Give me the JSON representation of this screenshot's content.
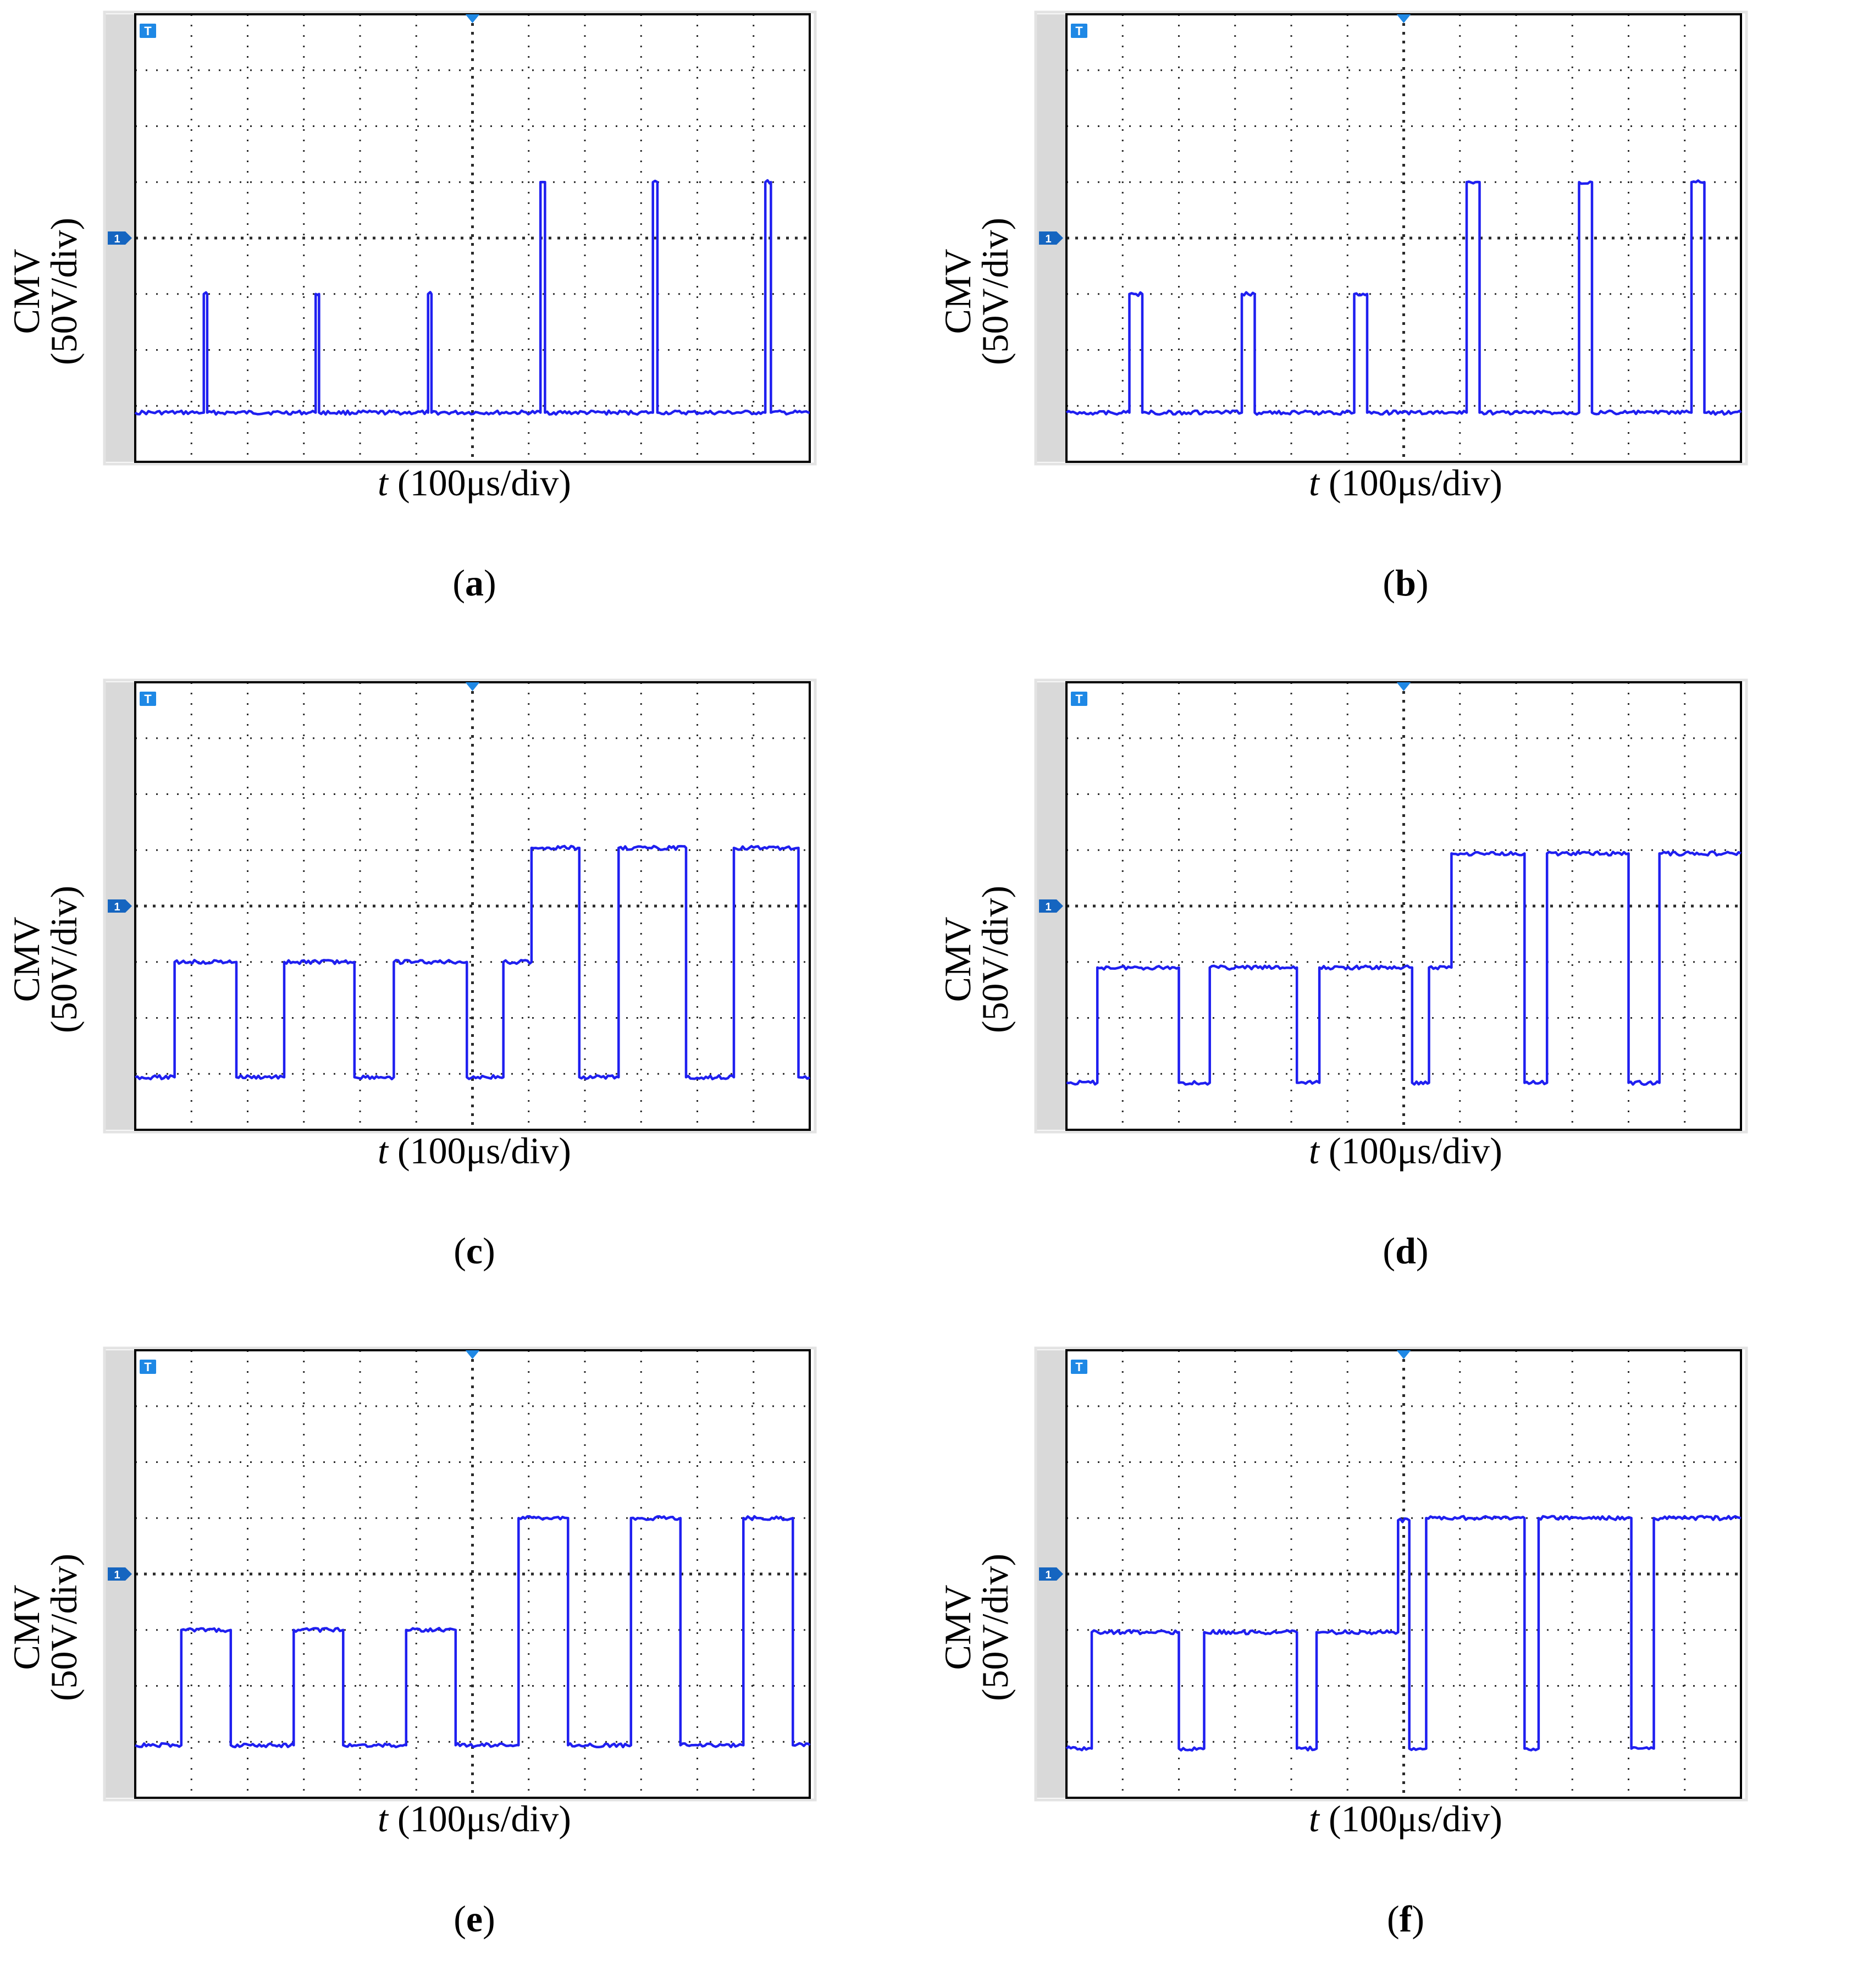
{
  "colors": {
    "trace": "#1f1ff0",
    "grid": "#2a2a2a",
    "bezel": "#d9d9d9",
    "marker": "#1e88e5"
  },
  "axes": {
    "ylabel_top": "CMV",
    "ylabel_bottom": "(50V/div)",
    "xlabel_var": "t",
    "xlabel_unit": " (100μs/div)"
  },
  "markers": {
    "trigger": "T",
    "channel": "1"
  },
  "chart_data": [
    {
      "type": "line",
      "caption_letter": "a",
      "xlabel": "t (100μs/div)",
      "ylabel": "CMV (50V/div)",
      "x_unit": "μs",
      "y_unit": "V",
      "xlim": [
        0,
        1200
      ],
      "ylim": [
        -200,
        200
      ],
      "grid": true,
      "points": [
        [
          0,
          -156
        ],
        [
          122,
          -156
        ],
        [
          122,
          -50
        ],
        [
          128,
          -50
        ],
        [
          128,
          -156
        ],
        [
          321,
          -156
        ],
        [
          321,
          -50
        ],
        [
          327,
          -50
        ],
        [
          327,
          -156
        ],
        [
          521,
          -156
        ],
        [
          521,
          -50
        ],
        [
          527,
          -50
        ],
        [
          527,
          -156
        ],
        [
          721,
          -156
        ],
        [
          721,
          50
        ],
        [
          729,
          50
        ],
        [
          729,
          -156
        ],
        [
          921,
          -156
        ],
        [
          921,
          50
        ],
        [
          929,
          50
        ],
        [
          929,
          -156
        ],
        [
          1121,
          -156
        ],
        [
          1121,
          50
        ],
        [
          1131,
          50
        ],
        [
          1131,
          -156
        ],
        [
          1200,
          -156
        ]
      ]
    },
    {
      "type": "line",
      "caption_letter": "b",
      "xlabel": "t (100μs/div)",
      "ylabel": "CMV (50V/div)",
      "x_unit": "μs",
      "y_unit": "V",
      "xlim": [
        0,
        1200
      ],
      "ylim": [
        -200,
        200
      ],
      "grid": true,
      "points": [
        [
          0,
          -156
        ],
        [
          112,
          -156
        ],
        [
          112,
          -50
        ],
        [
          135,
          -50
        ],
        [
          135,
          -156
        ],
        [
          312,
          -156
        ],
        [
          312,
          -50
        ],
        [
          335,
          -50
        ],
        [
          335,
          -156
        ],
        [
          512,
          -156
        ],
        [
          512,
          -50
        ],
        [
          535,
          -50
        ],
        [
          535,
          -156
        ],
        [
          712,
          -156
        ],
        [
          712,
          50
        ],
        [
          735,
          50
        ],
        [
          735,
          -156
        ],
        [
          912,
          -156
        ],
        [
          912,
          50
        ],
        [
          935,
          50
        ],
        [
          935,
          -156
        ],
        [
          1112,
          -156
        ],
        [
          1112,
          50
        ],
        [
          1135,
          50
        ],
        [
          1135,
          -156
        ],
        [
          1200,
          -156
        ]
      ]
    },
    {
      "type": "line",
      "caption_letter": "c",
      "xlabel": "t (100μs/div)",
      "ylabel": "CMV (50V/div)",
      "x_unit": "μs",
      "y_unit": "V",
      "xlim": [
        0,
        1200
      ],
      "ylim": [
        -200,
        200
      ],
      "grid": true,
      "points": [
        [
          0,
          -153
        ],
        [
          70,
          -153
        ],
        [
          70,
          -50
        ],
        [
          180,
          -50
        ],
        [
          180,
          -153
        ],
        [
          265,
          -153
        ],
        [
          265,
          -50
        ],
        [
          390,
          -50
        ],
        [
          390,
          -153
        ],
        [
          460,
          -153
        ],
        [
          460,
          -50
        ],
        [
          590,
          -50
        ],
        [
          590,
          -153
        ],
        [
          655,
          -153
        ],
        [
          655,
          -50
        ],
        [
          705,
          -50
        ],
        [
          705,
          52
        ],
        [
          790,
          52
        ],
        [
          790,
          -153
        ],
        [
          860,
          -153
        ],
        [
          860,
          52
        ],
        [
          980,
          52
        ],
        [
          980,
          -153
        ],
        [
          1065,
          -153
        ],
        [
          1065,
          52
        ],
        [
          1180,
          52
        ],
        [
          1180,
          -153
        ],
        [
          1200,
          -153
        ]
      ]
    },
    {
      "type": "line",
      "caption_letter": "d",
      "xlabel": "t (100μs/div)",
      "ylabel": "CMV (50V/div)",
      "x_unit": "μs",
      "y_unit": "V",
      "xlim": [
        0,
        1200
      ],
      "ylim": [
        -200,
        200
      ],
      "grid": true,
      "points": [
        [
          0,
          -158
        ],
        [
          55,
          -158
        ],
        [
          55,
          -55
        ],
        [
          200,
          -55
        ],
        [
          200,
          -158
        ],
        [
          255,
          -158
        ],
        [
          255,
          -55
        ],
        [
          410,
          -55
        ],
        [
          410,
          -158
        ],
        [
          450,
          -158
        ],
        [
          450,
          -55
        ],
        [
          615,
          -55
        ],
        [
          615,
          -158
        ],
        [
          645,
          -158
        ],
        [
          645,
          -55
        ],
        [
          685,
          -55
        ],
        [
          685,
          47
        ],
        [
          815,
          47
        ],
        [
          815,
          -158
        ],
        [
          855,
          -158
        ],
        [
          855,
          47
        ],
        [
          1000,
          47
        ],
        [
          1000,
          -158
        ],
        [
          1055,
          -158
        ],
        [
          1055,
          47
        ],
        [
          1200,
          47
        ]
      ]
    },
    {
      "type": "line",
      "caption_letter": "e",
      "xlabel": "t (100μs/div)",
      "ylabel": "CMV (50V/div)",
      "x_unit": "μs",
      "y_unit": "V",
      "xlim": [
        0,
        1200
      ],
      "ylim": [
        -200,
        200
      ],
      "grid": true,
      "points": [
        [
          0,
          -153
        ],
        [
          82,
          -153
        ],
        [
          82,
          -50
        ],
        [
          170,
          -50
        ],
        [
          170,
          -153
        ],
        [
          282,
          -153
        ],
        [
          282,
          -50
        ],
        [
          370,
          -50
        ],
        [
          370,
          -153
        ],
        [
          482,
          -153
        ],
        [
          482,
          -50
        ],
        [
          570,
          -50
        ],
        [
          570,
          -153
        ],
        [
          682,
          -153
        ],
        [
          682,
          50
        ],
        [
          770,
          50
        ],
        [
          770,
          -153
        ],
        [
          882,
          -153
        ],
        [
          882,
          50
        ],
        [
          970,
          50
        ],
        [
          970,
          -153
        ],
        [
          1082,
          -153
        ],
        [
          1082,
          50
        ],
        [
          1170,
          50
        ],
        [
          1170,
          -153
        ],
        [
          1200,
          -153
        ]
      ]
    },
    {
      "type": "line",
      "caption_letter": "f",
      "xlabel": "t (100μs/div)",
      "ylabel": "CMV (50V/div)",
      "x_unit": "μs",
      "y_unit": "V",
      "xlim": [
        0,
        1200
      ],
      "ylim": [
        -200,
        200
      ],
      "grid": true,
      "points": [
        [
          0,
          -156
        ],
        [
          45,
          -156
        ],
        [
          45,
          -52
        ],
        [
          200,
          -52
        ],
        [
          200,
          -156
        ],
        [
          245,
          -156
        ],
        [
          245,
          -52
        ],
        [
          410,
          -52
        ],
        [
          410,
          -156
        ],
        [
          445,
          -156
        ],
        [
          445,
          -52
        ],
        [
          590,
          -52
        ],
        [
          590,
          48
        ],
        [
          610,
          48
        ],
        [
          610,
          -156
        ],
        [
          640,
          -156
        ],
        [
          640,
          50
        ],
        [
          815,
          50
        ],
        [
          815,
          -156
        ],
        [
          840,
          -156
        ],
        [
          840,
          50
        ],
        [
          1005,
          50
        ],
        [
          1005,
          -156
        ],
        [
          1045,
          -156
        ],
        [
          1045,
          50
        ],
        [
          1200,
          50
        ]
      ]
    }
  ]
}
